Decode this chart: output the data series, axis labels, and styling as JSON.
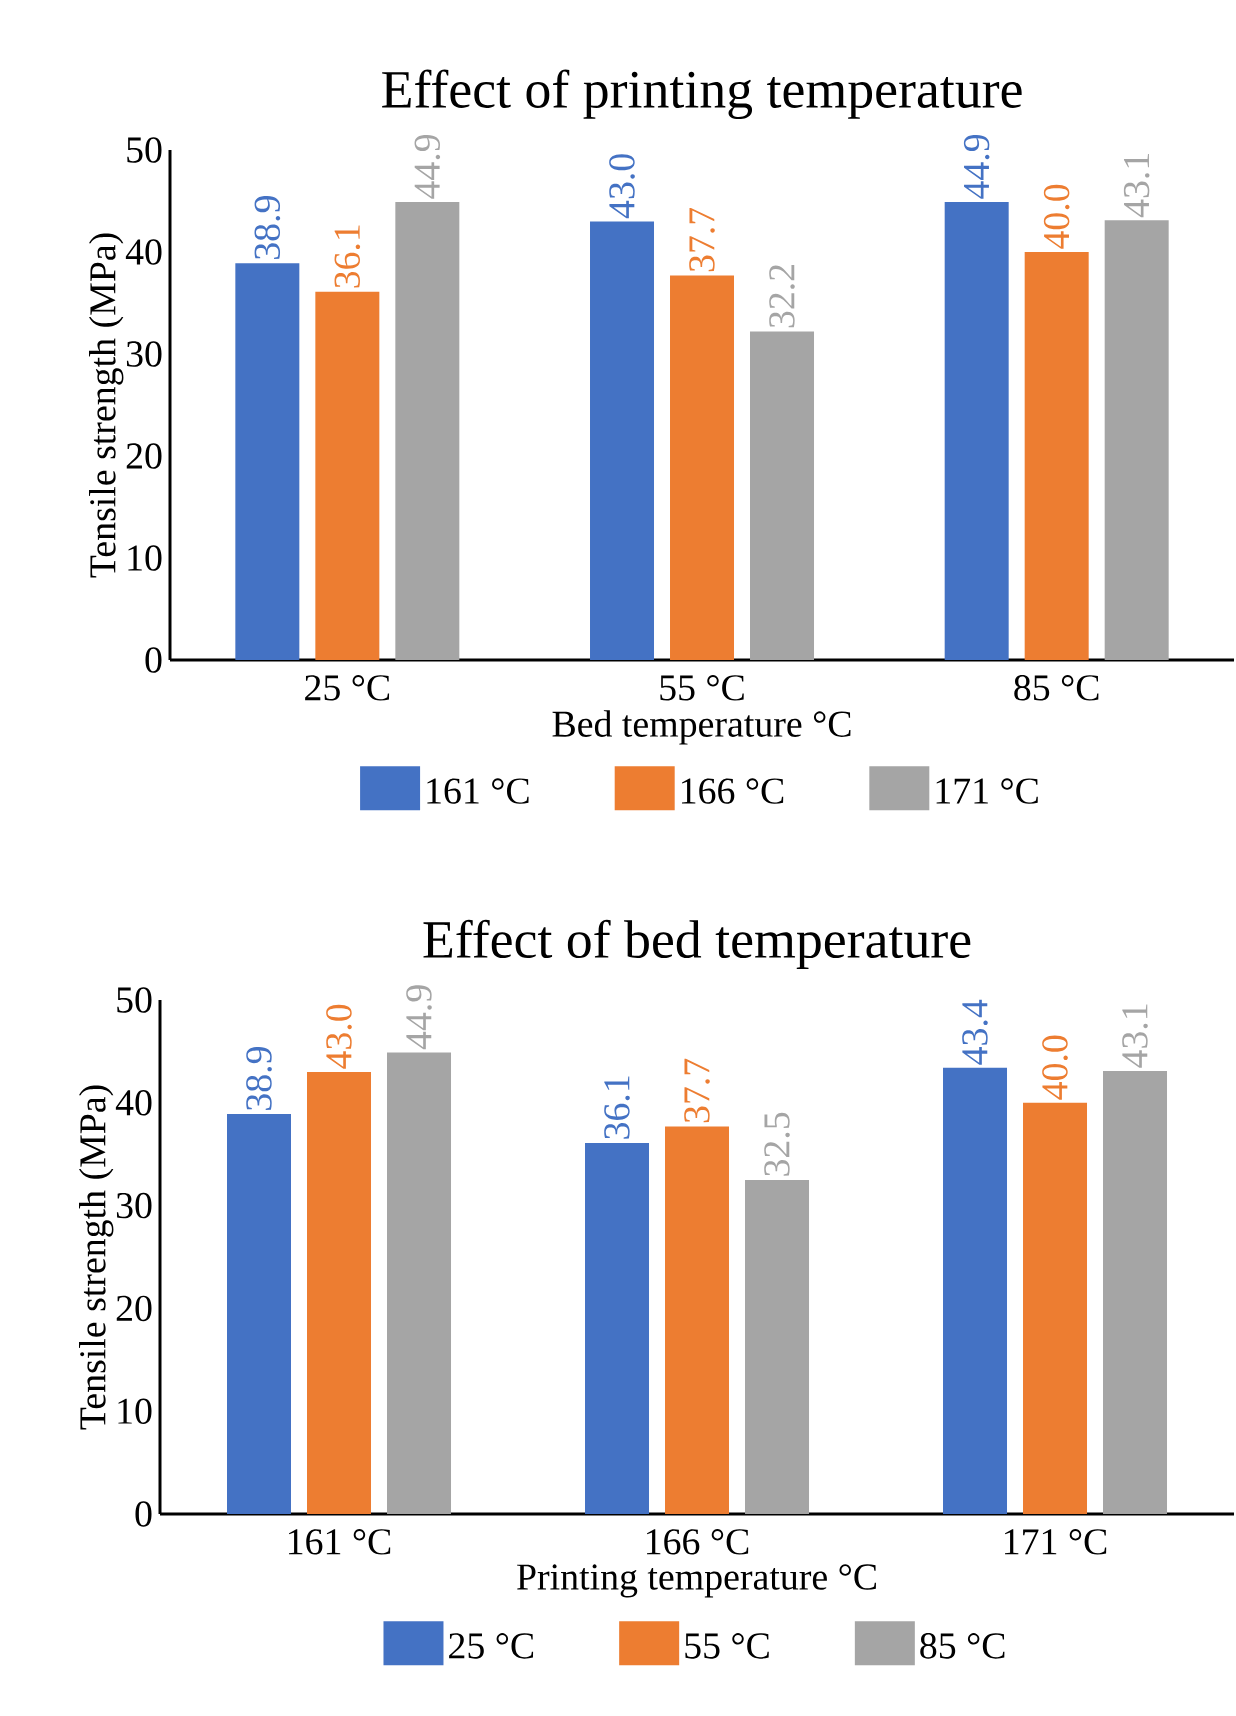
{
  "chart_data": [
    {
      "type": "bar",
      "title": "Effect of printing temperature",
      "xlabel": "Bed temperature °C",
      "ylabel": "Tensile strength (MPa)",
      "categories": [
        "25 °C",
        "55 °C",
        "85 °C"
      ],
      "series": [
        {
          "name": "161 °C",
          "color": "#4472c4",
          "values": [
            38.9,
            43.0,
            44.9
          ],
          "value_labels": [
            "38.9",
            "43.0",
            "44.9"
          ]
        },
        {
          "name": "166 °C",
          "color": "#ed7d31",
          "values": [
            36.1,
            37.7,
            40.0
          ],
          "value_labels": [
            "36.1",
            "37.7",
            "40.0"
          ]
        },
        {
          "name": "171 °C",
          "color": "#a5a5a5",
          "values": [
            44.9,
            32.2,
            43.1
          ],
          "value_labels": [
            "44.9",
            "32.2",
            "43.1"
          ]
        }
      ],
      "ylim": [
        0,
        50
      ],
      "yticks": [
        0,
        10,
        20,
        30,
        40,
        50
      ],
      "legend": "bottom",
      "grid": false
    },
    {
      "type": "bar",
      "title": "Effect of bed temperature",
      "xlabel": "Printing temperature °C",
      "ylabel": "Tensile strength (MPa)",
      "categories": [
        "161 °C",
        "166 °C",
        "171 °C"
      ],
      "series": [
        {
          "name": "25 °C",
          "color": "#4472c4",
          "values": [
            38.9,
            36.1,
            43.4
          ],
          "value_labels": [
            "38.9",
            "36.1",
            "43.4"
          ]
        },
        {
          "name": "55 °C",
          "color": "#ed7d31",
          "values": [
            43.0,
            37.7,
            40.0
          ],
          "value_labels": [
            "43.0",
            "37.7",
            "40.0"
          ]
        },
        {
          "name": "85 °C",
          "color": "#a5a5a5",
          "values": [
            44.9,
            32.5,
            43.1
          ],
          "value_labels": [
            "44.9",
            "32.5",
            "43.1"
          ]
        }
      ],
      "ylim": [
        0,
        50
      ],
      "yticks": [
        0,
        10,
        20,
        30,
        40,
        50
      ],
      "legend": "bottom",
      "grid": false
    }
  ]
}
